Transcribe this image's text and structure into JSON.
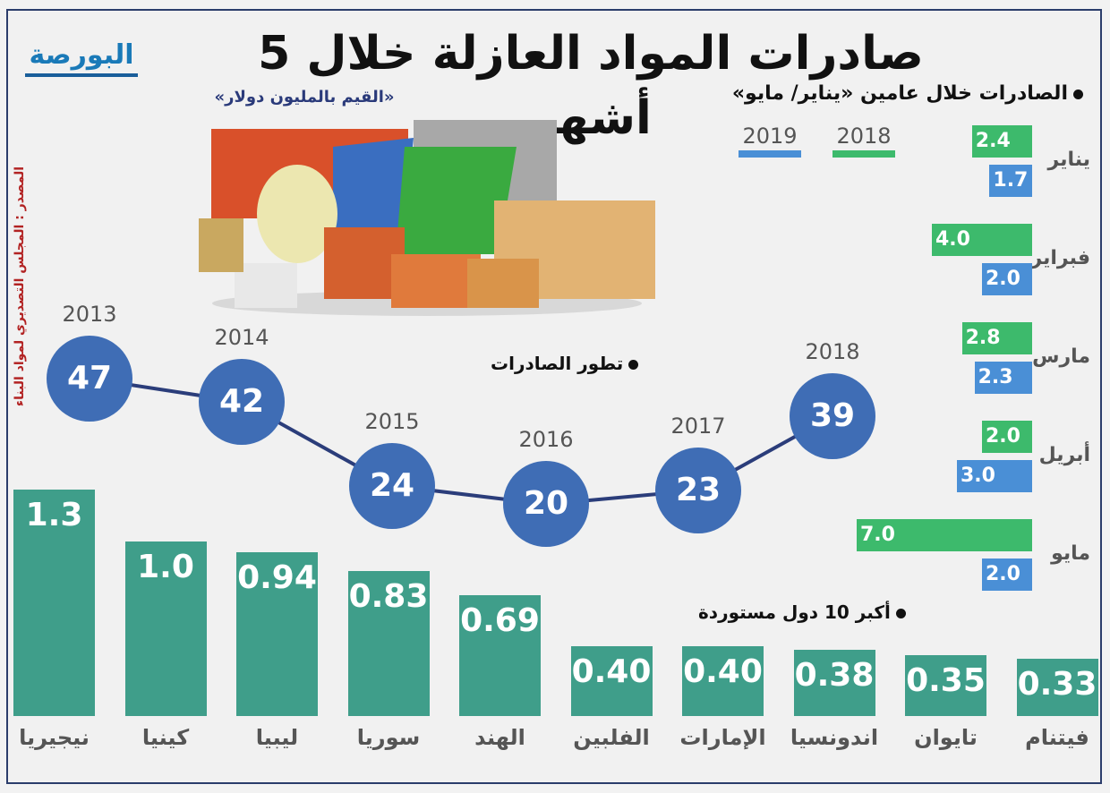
{
  "header": {
    "title": "صادرات المواد  العازلة خلال 5 أشهر",
    "subtitle": "«القيم بالمليون دولار»",
    "logo_text": "البورصة",
    "source": "المصدر : المجلس التصديري لمواد البناء"
  },
  "colors": {
    "green_2018": "#3dba6c",
    "blue_2019": "#4a8fd6",
    "bubble": "#3f6db5",
    "country_bar": "#3f9e8a",
    "source_red": "#b22222"
  },
  "chart_data": [
    {
      "type": "bar",
      "orientation": "horizontal",
      "title": "الصادرات خلال عامين «يناير/ مايو»",
      "categories": [
        "يناير",
        "فبراير",
        "مارس",
        "أبريل",
        "مايو"
      ],
      "series": [
        {
          "name": "2018",
          "values": [
            2.4,
            4.0,
            2.8,
            2.0,
            7.0
          ]
        },
        {
          "name": "2019",
          "values": [
            1.7,
            2.0,
            2.3,
            3.0,
            2.0
          ]
        }
      ],
      "legend": [
        "2019",
        "2018"
      ],
      "unit": "مليون دولار"
    },
    {
      "type": "line",
      "title": "تطور الصادرات",
      "x": [
        "2013",
        "2014",
        "2015",
        "2016",
        "2017",
        "2018"
      ],
      "values": [
        47,
        42,
        24,
        20,
        23,
        39
      ]
    },
    {
      "type": "bar",
      "title": "أكبر 10 دول مستوردة",
      "categories": [
        "نيجيريا",
        "كينيا",
        "ليبيا",
        "سوريا",
        "الهند",
        "الفلبين",
        "الإمارات",
        "اندونسيا",
        "تايوان",
        "فيتنام"
      ],
      "values": [
        "1.3",
        "1.0",
        "0.94",
        "0.83",
        "0.69",
        "0.40",
        "0.40",
        "0.38",
        "0.35",
        "0.33"
      ]
    }
  ]
}
